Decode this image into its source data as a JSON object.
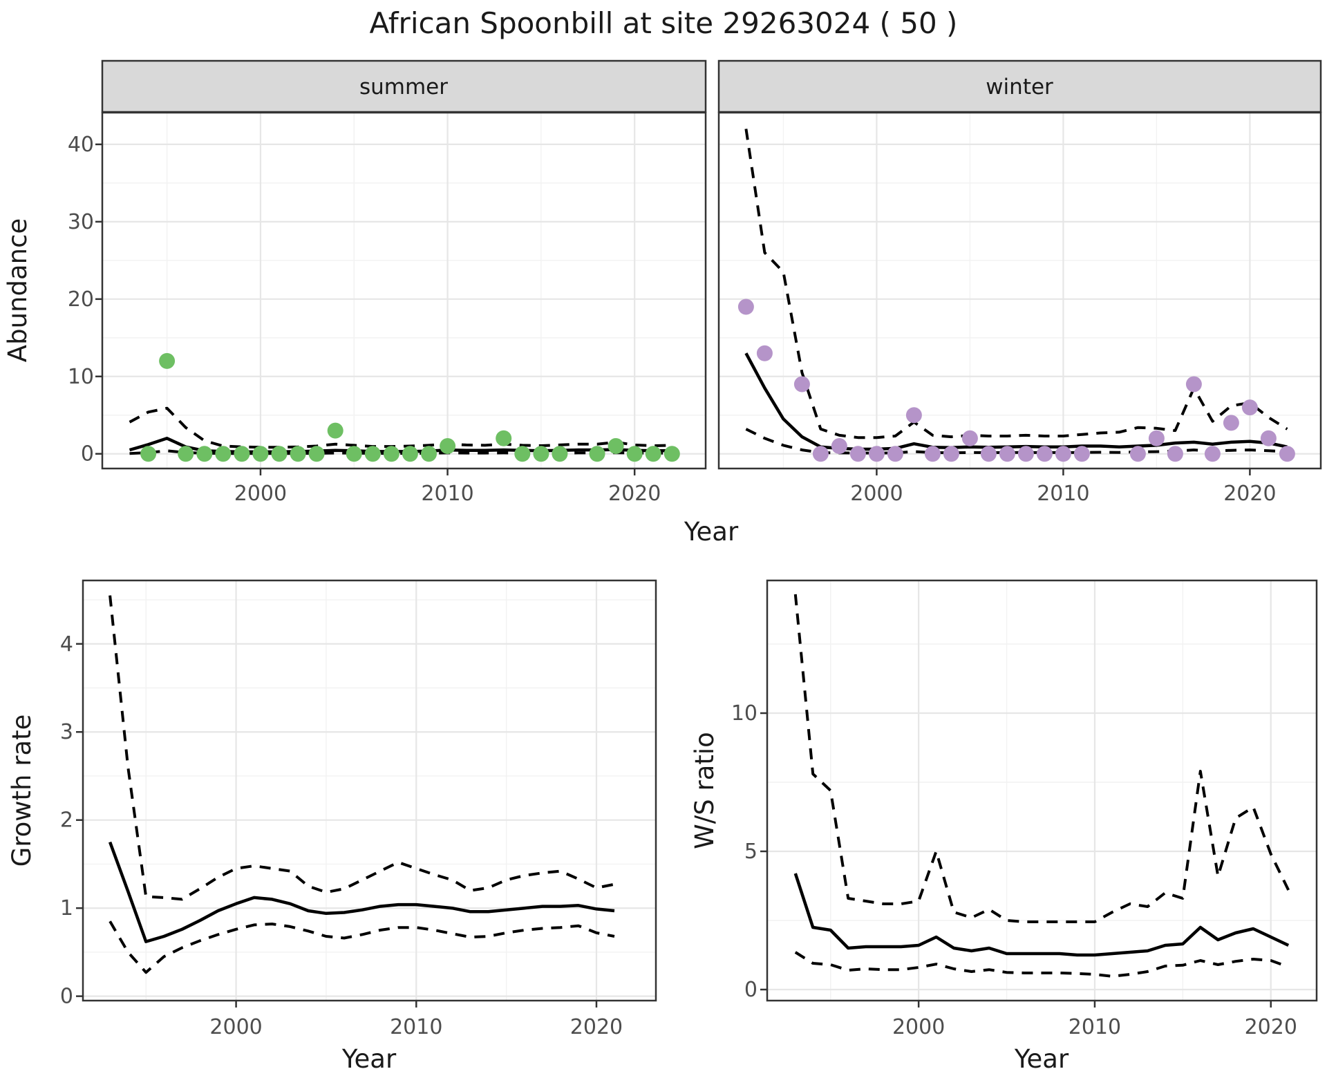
{
  "title": "African Spoonbill at site 29263024 ( 50 )",
  "facets": [
    "summer",
    "winter"
  ],
  "axes": {
    "x_label": "Year",
    "abundance_label": "Abundance",
    "growth_label": "Growth rate",
    "ws_label": "W/S ratio"
  },
  "colors": {
    "summer_point": "#6ebf63",
    "winter_point": "#b594c9",
    "line": "#000000",
    "tick_label": "#4d4d4d",
    "strip_bg": "#d9d9d9",
    "panel_border": "#333333",
    "grid_major": "#e6e6e6",
    "grid_minor": "#f2f2f2",
    "background": "#ffffff"
  },
  "chart_data": [
    {
      "id": "abundance-summer",
      "type": "scatter",
      "facet": "summer",
      "title": "Abundance in summer with model fit and 95% CI",
      "xlabel": "Year",
      "ylabel": "Abundance",
      "xlim": [
        1991.54,
        2023.8
      ],
      "ylim": [
        -1.9,
        44.1
      ],
      "x_ticks": [
        2000,
        2010,
        2020
      ],
      "x_minor": [
        1995,
        2005,
        2015
      ],
      "y_ticks": [
        0,
        10,
        20,
        30,
        40
      ],
      "y_minor": [
        5,
        15,
        25,
        35
      ],
      "points": {
        "x": [
          1994,
          1995,
          1996,
          1997,
          1998,
          1999,
          2000,
          2001,
          2002,
          2003,
          2004,
          2005,
          2006,
          2007,
          2008,
          2009,
          2010,
          2013,
          2014,
          2015,
          2016,
          2018,
          2019,
          2020,
          2021,
          2022
        ],
        "y": [
          0,
          12,
          0,
          0,
          0,
          0,
          0,
          0,
          0,
          0,
          3,
          0,
          0,
          0,
          0,
          0,
          1,
          2,
          0,
          0,
          0,
          0,
          1,
          0,
          0,
          0
        ]
      },
      "fit": {
        "x": [
          1993,
          1994,
          1995,
          1996,
          1997,
          1998,
          1999,
          2000,
          2001,
          2002,
          2003,
          2004,
          2005,
          2006,
          2007,
          2008,
          2009,
          2010,
          2011,
          2012,
          2013,
          2014,
          2015,
          2016,
          2017,
          2018,
          2019,
          2020,
          2021,
          2022
        ],
        "y": [
          0.5,
          1.2,
          2.0,
          0.9,
          0.4,
          0.3,
          0.25,
          0.25,
          0.25,
          0.3,
          0.35,
          0.45,
          0.4,
          0.3,
          0.3,
          0.3,
          0.35,
          0.5,
          0.45,
          0.45,
          0.5,
          0.45,
          0.4,
          0.45,
          0.5,
          0.5,
          0.55,
          0.45,
          0.4,
          0.4
        ]
      },
      "upper": {
        "x": [
          1993,
          1994,
          1995,
          1996,
          1997,
          1998,
          1999,
          2000,
          2001,
          2002,
          2003,
          2004,
          2005,
          2006,
          2007,
          2008,
          2009,
          2010,
          2011,
          2012,
          2013,
          2014,
          2015,
          2016,
          2017,
          2018,
          2019,
          2020,
          2021,
          2022
        ],
        "y": [
          4.1,
          5.4,
          5.9,
          3.4,
          1.7,
          1.0,
          0.9,
          0.85,
          0.85,
          0.9,
          1.0,
          1.25,
          1.1,
          0.95,
          0.95,
          1.0,
          1.1,
          1.25,
          1.15,
          1.1,
          1.25,
          1.1,
          1.05,
          1.15,
          1.25,
          1.25,
          1.5,
          1.15,
          1.05,
          1.1
        ]
      },
      "lower": {
        "x": [
          1993,
          1994,
          1995,
          1996,
          1997,
          1998,
          1999,
          2000,
          2001,
          2002,
          2003,
          2004,
          2005,
          2006,
          2007,
          2008,
          2009,
          2010,
          2011,
          2012,
          2013,
          2014,
          2015,
          2016,
          2017,
          2018,
          2019,
          2020,
          2021,
          2022
        ],
        "y": [
          0.05,
          0.15,
          0.4,
          0.15,
          0.08,
          0.05,
          0.05,
          0.05,
          0.05,
          0.05,
          0.06,
          0.1,
          0.08,
          0.06,
          0.06,
          0.06,
          0.07,
          0.12,
          0.1,
          0.1,
          0.12,
          0.1,
          0.09,
          0.1,
          0.12,
          0.12,
          0.14,
          0.1,
          0.09,
          0.09
        ]
      }
    },
    {
      "id": "abundance-winter",
      "type": "scatter",
      "facet": "winter",
      "title": "Abundance in winter with model fit and 95% CI",
      "xlabel": "Year",
      "ylabel": "Abundance",
      "xlim": [
        1991.54,
        2023.8
      ],
      "ylim": [
        -1.9,
        44.1
      ],
      "x_ticks": [
        2000,
        2010,
        2020
      ],
      "x_minor": [
        1995,
        2005,
        2015
      ],
      "y_ticks": [
        0,
        10,
        20,
        30,
        40
      ],
      "y_minor": [
        5,
        15,
        25,
        35
      ],
      "points": {
        "x": [
          1993,
          1994,
          1996,
          1997,
          1998,
          1999,
          2000,
          2001,
          2002,
          2003,
          2004,
          2005,
          2006,
          2007,
          2008,
          2009,
          2010,
          2011,
          2014,
          2015,
          2016,
          2017,
          2018,
          2019,
          2020,
          2021,
          2022
        ],
        "y": [
          19,
          13,
          9,
          0,
          1,
          0,
          0,
          0,
          5,
          0,
          0,
          2,
          0,
          0,
          0,
          0,
          0,
          0,
          0,
          2,
          0,
          9,
          0,
          4,
          6,
          2,
          0
        ]
      },
      "fit": {
        "x": [
          1993,
          1994,
          1995,
          1996,
          1997,
          1998,
          1999,
          2000,
          2001,
          2002,
          2003,
          2004,
          2005,
          2006,
          2007,
          2008,
          2009,
          2010,
          2011,
          2012,
          2013,
          2014,
          2015,
          2016,
          2017,
          2018,
          2019,
          2020,
          2021,
          2022
        ],
        "y": [
          13,
          8.5,
          4.5,
          2.2,
          0.9,
          0.7,
          0.6,
          0.6,
          0.7,
          1.3,
          0.85,
          0.8,
          0.9,
          0.85,
          0.9,
          0.95,
          0.9,
          0.9,
          1.0,
          1.0,
          0.9,
          1.0,
          1.1,
          1.4,
          1.5,
          1.25,
          1.5,
          1.6,
          1.4,
          0.9
        ]
      },
      "upper": {
        "x": [
          1993,
          1994,
          1995,
          1996,
          1997,
          1998,
          1999,
          2000,
          2001,
          2002,
          2003,
          2004,
          2005,
          2006,
          2007,
          2008,
          2009,
          2010,
          2011,
          2012,
          2013,
          2014,
          2015,
          2016,
          2017,
          2018,
          2019,
          2020,
          2021,
          2022
        ],
        "y": [
          42,
          26,
          23.5,
          10.5,
          3.2,
          2.4,
          2.1,
          2.1,
          2.3,
          4.1,
          2.4,
          2.2,
          2.4,
          2.3,
          2.3,
          2.4,
          2.3,
          2.3,
          2.5,
          2.7,
          2.8,
          3.4,
          3.3,
          3.0,
          8.5,
          4.2,
          6.2,
          6.6,
          4.7,
          3.2
        ]
      },
      "lower": {
        "x": [
          1993,
          1994,
          1995,
          1996,
          1997,
          1998,
          1999,
          2000,
          2001,
          2002,
          2003,
          2004,
          2005,
          2006,
          2007,
          2008,
          2009,
          2010,
          2011,
          2012,
          2013,
          2014,
          2015,
          2016,
          2017,
          2018,
          2019,
          2020,
          2021,
          2022
        ],
        "y": [
          3.2,
          2.0,
          1.1,
          0.5,
          0.15,
          0.12,
          0.1,
          0.1,
          0.12,
          0.3,
          0.15,
          0.14,
          0.16,
          0.15,
          0.16,
          0.17,
          0.16,
          0.16,
          0.18,
          0.2,
          0.18,
          0.25,
          0.28,
          0.35,
          0.5,
          0.35,
          0.45,
          0.5,
          0.4,
          0.3
        ]
      }
    },
    {
      "id": "growth-rate",
      "type": "line",
      "facet": null,
      "title": "Growth rate with 95% CI",
      "xlabel": "Year",
      "ylabel": "Growth rate",
      "xlim": [
        1991.5,
        2023.3
      ],
      "ylim": [
        -0.05,
        4.72
      ],
      "x_ticks": [
        2000,
        2010,
        2020
      ],
      "x_minor": [
        1995,
        2005,
        2015
      ],
      "y_ticks": [
        0,
        1,
        2,
        3,
        4
      ],
      "y_minor": [
        0.5,
        1.5,
        2.5,
        3.5,
        4.5
      ],
      "points": {
        "x": [],
        "y": []
      },
      "fit": {
        "x": [
          1993,
          1994,
          1995,
          1996,
          1997,
          1998,
          1999,
          2000,
          2001,
          2002,
          2003,
          2004,
          2005,
          2006,
          2007,
          2008,
          2009,
          2010,
          2011,
          2012,
          2013,
          2014,
          2015,
          2016,
          2017,
          2018,
          2019,
          2020,
          2021
        ],
        "y": [
          1.75,
          1.19,
          0.62,
          0.68,
          0.76,
          0.86,
          0.97,
          1.05,
          1.12,
          1.1,
          1.05,
          0.97,
          0.94,
          0.95,
          0.98,
          1.02,
          1.04,
          1.04,
          1.02,
          1.0,
          0.96,
          0.96,
          0.98,
          1.0,
          1.02,
          1.02,
          1.03,
          0.99,
          0.97
        ]
      },
      "upper": {
        "x": [
          1993,
          1994,
          1995,
          1996,
          1997,
          1998,
          1999,
          2000,
          2001,
          2002,
          2003,
          2004,
          2005,
          2006,
          2007,
          2008,
          2009,
          2010,
          2011,
          2012,
          2013,
          2014,
          2015,
          2016,
          2017,
          2018,
          2019,
          2020,
          2021
        ],
        "y": [
          4.55,
          2.6,
          1.13,
          1.12,
          1.1,
          1.22,
          1.35,
          1.45,
          1.48,
          1.45,
          1.42,
          1.25,
          1.18,
          1.22,
          1.32,
          1.42,
          1.52,
          1.45,
          1.38,
          1.32,
          1.2,
          1.23,
          1.32,
          1.37,
          1.4,
          1.42,
          1.33,
          1.23,
          1.27
        ]
      },
      "lower": {
        "x": [
          1993,
          1994,
          1995,
          1996,
          1997,
          1998,
          1999,
          2000,
          2001,
          2002,
          2003,
          2004,
          2005,
          2006,
          2007,
          2008,
          2009,
          2010,
          2011,
          2012,
          2013,
          2014,
          2015,
          2016,
          2017,
          2018,
          2019,
          2020,
          2021
        ],
        "y": [
          0.85,
          0.5,
          0.27,
          0.45,
          0.55,
          0.63,
          0.7,
          0.76,
          0.81,
          0.82,
          0.79,
          0.74,
          0.68,
          0.66,
          0.7,
          0.75,
          0.78,
          0.78,
          0.75,
          0.71,
          0.67,
          0.68,
          0.72,
          0.75,
          0.77,
          0.78,
          0.8,
          0.72,
          0.68
        ]
      }
    },
    {
      "id": "ws-ratio",
      "type": "line",
      "facet": null,
      "title": "Winter/Summer ratio with 95% CI",
      "xlabel": "Year",
      "ylabel": "W/S ratio",
      "xlim": [
        1991.4,
        2022.6
      ],
      "ylim": [
        -0.4,
        14.8
      ],
      "x_ticks": [
        2000,
        2010,
        2020
      ],
      "x_minor": [
        1995,
        2005,
        2015
      ],
      "y_ticks": [
        0,
        5,
        10
      ],
      "y_minor": [
        2.5,
        7.5,
        12.5
      ],
      "points": {
        "x": [],
        "y": []
      },
      "fit": {
        "x": [
          1993,
          1994,
          1995,
          1996,
          1997,
          1998,
          1999,
          2000,
          2001,
          2002,
          2003,
          2004,
          2005,
          2006,
          2007,
          2008,
          2009,
          2010,
          2011,
          2012,
          2013,
          2014,
          2015,
          2016,
          2017,
          2018,
          2019,
          2020,
          2021
        ],
        "y": [
          4.2,
          2.25,
          2.15,
          1.5,
          1.55,
          1.55,
          1.55,
          1.6,
          1.9,
          1.5,
          1.4,
          1.5,
          1.3,
          1.3,
          1.3,
          1.3,
          1.25,
          1.25,
          1.3,
          1.35,
          1.4,
          1.6,
          1.65,
          2.25,
          1.8,
          2.05,
          2.2,
          1.9,
          1.6
        ]
      },
      "upper": {
        "x": [
          1993,
          1994,
          1995,
          1996,
          1997,
          1998,
          1999,
          2000,
          2001,
          2002,
          2003,
          2004,
          2005,
          2006,
          2007,
          2008,
          2009,
          2010,
          2011,
          2012,
          2013,
          2014,
          2015,
          2016,
          2017,
          2018,
          2019,
          2020,
          2021
        ],
        "y": [
          14.3,
          7.8,
          7.2,
          3.3,
          3.2,
          3.1,
          3.1,
          3.2,
          5.0,
          2.8,
          2.6,
          2.9,
          2.5,
          2.45,
          2.45,
          2.45,
          2.45,
          2.45,
          2.8,
          3.1,
          3.0,
          3.5,
          3.3,
          7.9,
          4.1,
          6.2,
          6.6,
          4.9,
          3.6
        ]
      },
      "lower": {
        "x": [
          1993,
          1994,
          1995,
          1996,
          1997,
          1998,
          1999,
          2000,
          2001,
          2002,
          2003,
          2004,
          2005,
          2006,
          2007,
          2008,
          2009,
          2010,
          2011,
          2012,
          2013,
          2014,
          2015,
          2016,
          2017,
          2018,
          2019,
          2020,
          2021
        ],
        "y": [
          1.35,
          0.95,
          0.9,
          0.7,
          0.75,
          0.72,
          0.72,
          0.8,
          0.92,
          0.75,
          0.65,
          0.72,
          0.62,
          0.6,
          0.6,
          0.6,
          0.58,
          0.55,
          0.48,
          0.55,
          0.65,
          0.85,
          0.88,
          1.05,
          0.9,
          1.02,
          1.1,
          1.05,
          0.82
        ]
      }
    }
  ]
}
